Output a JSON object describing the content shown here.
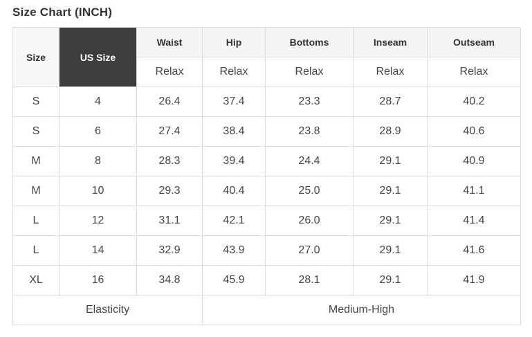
{
  "title": "Size Chart (INCH)",
  "table": {
    "corner": {
      "size": "Size",
      "us_size": "US Size"
    },
    "measure_columns": [
      {
        "label": "Waist",
        "fit": "Relax"
      },
      {
        "label": "Hip",
        "fit": "Relax"
      },
      {
        "label": "Bottoms",
        "fit": "Relax"
      },
      {
        "label": "Inseam",
        "fit": "Relax"
      },
      {
        "label": "Outseam",
        "fit": "Relax"
      }
    ],
    "rows": [
      {
        "size": "S",
        "us_size": "4",
        "waist": "26.4",
        "hip": "37.4",
        "bottoms": "23.3",
        "inseam": "28.7",
        "outseam": "40.2"
      },
      {
        "size": "S",
        "us_size": "6",
        "waist": "27.4",
        "hip": "38.4",
        "bottoms": "23.8",
        "inseam": "28.9",
        "outseam": "40.6"
      },
      {
        "size": "M",
        "us_size": "8",
        "waist": "28.3",
        "hip": "39.4",
        "bottoms": "24.4",
        "inseam": "29.1",
        "outseam": "40.9"
      },
      {
        "size": "M",
        "us_size": "10",
        "waist": "29.3",
        "hip": "40.4",
        "bottoms": "25.0",
        "inseam": "29.1",
        "outseam": "41.1"
      },
      {
        "size": "L",
        "us_size": "12",
        "waist": "31.1",
        "hip": "42.1",
        "bottoms": "26.0",
        "inseam": "29.1",
        "outseam": "41.4"
      },
      {
        "size": "L",
        "us_size": "14",
        "waist": "32.9",
        "hip": "43.9",
        "bottoms": "27.0",
        "inseam": "29.1",
        "outseam": "41.6"
      },
      {
        "size": "XL",
        "us_size": "16",
        "waist": "34.8",
        "hip": "45.9",
        "bottoms": "28.1",
        "inseam": "29.1",
        "outseam": "41.9"
      }
    ],
    "footer": {
      "elasticity_label": "Elasticity",
      "elasticity_value": "Medium-High"
    }
  },
  "colors": {
    "us_size_header_bg": "#3d3d3d",
    "us_size_header_text": "#ffffff",
    "header_bg": "#f5f5f5",
    "border": "#dddddd",
    "body_text": "#444444",
    "title_text": "#333333"
  }
}
